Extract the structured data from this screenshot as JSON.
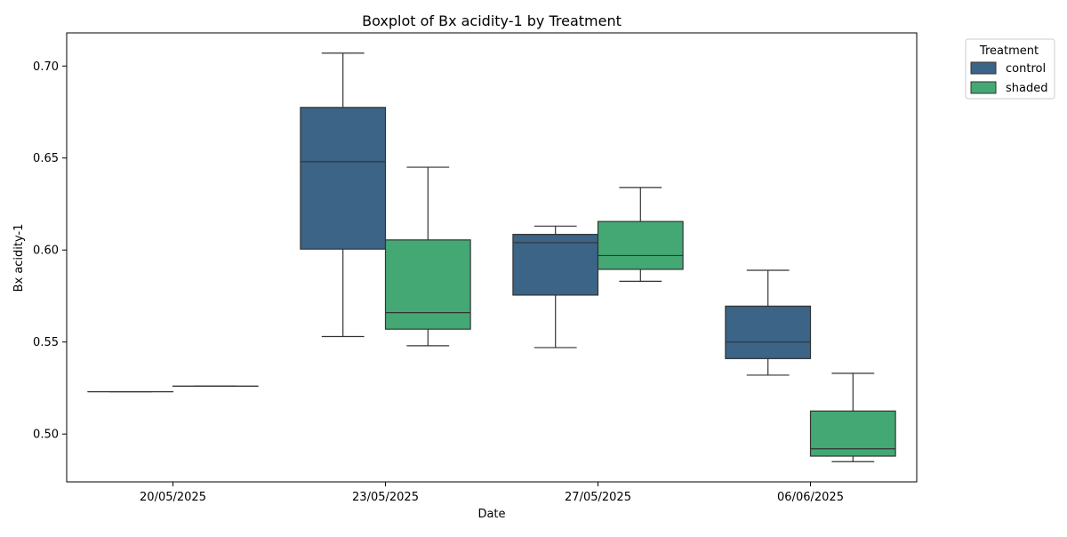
{
  "chart_data": {
    "type": "box",
    "title": "Boxplot of Bx acidity-1 by Treatment",
    "xlabel": "Date",
    "ylabel": "Bx acidity-1",
    "categories": [
      "20/05/2025",
      "23/05/2025",
      "27/05/2025",
      "06/06/2025"
    ],
    "ylim": [
      0.474,
      0.718
    ],
    "yticks": [
      0.5,
      0.55,
      0.6,
      0.65,
      0.7
    ],
    "ytick_labels": [
      "0.50",
      "0.55",
      "0.60",
      "0.65",
      "0.70"
    ],
    "grid": false,
    "legend": {
      "title": "Treatment",
      "placement": "outside-top-right"
    },
    "series": [
      {
        "name": "control",
        "color": "#3b6486",
        "boxes": [
          {
            "whisker_low": 0.523,
            "q1": 0.523,
            "median": 0.523,
            "q3": 0.523,
            "whisker_high": 0.523
          },
          {
            "whisker_low": 0.553,
            "q1": 0.6005,
            "median": 0.648,
            "q3": 0.6775,
            "whisker_high": 0.707
          },
          {
            "whisker_low": 0.547,
            "q1": 0.5755,
            "median": 0.604,
            "q3": 0.6085,
            "whisker_high": 0.613
          },
          {
            "whisker_low": 0.532,
            "q1": 0.541,
            "median": 0.55,
            "q3": 0.5695,
            "whisker_high": 0.589
          }
        ]
      },
      {
        "name": "shaded",
        "color": "#43a874",
        "boxes": [
          {
            "whisker_low": 0.526,
            "q1": 0.526,
            "median": 0.526,
            "q3": 0.526,
            "whisker_high": 0.526
          },
          {
            "whisker_low": 0.548,
            "q1": 0.557,
            "median": 0.566,
            "q3": 0.6055,
            "whisker_high": 0.645
          },
          {
            "whisker_low": 0.583,
            "q1": 0.5895,
            "median": 0.597,
            "q3": 0.6155,
            "whisker_high": 0.634
          },
          {
            "whisker_low": 0.485,
            "q1": 0.488,
            "median": 0.492,
            "q3": 0.5125,
            "whisker_high": 0.533
          }
        ]
      }
    ]
  }
}
